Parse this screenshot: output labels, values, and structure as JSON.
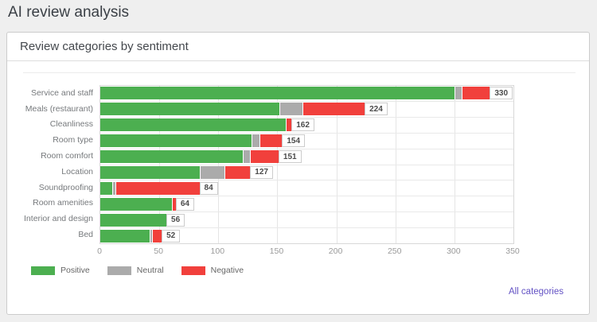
{
  "page": {
    "title": "AI review analysis"
  },
  "panel": {
    "title": "Review categories by sentiment",
    "link_label": "All categories"
  },
  "chart_data": {
    "type": "bar",
    "orientation": "horizontal",
    "stacked": true,
    "title": "Review categories by sentiment",
    "xlabel": "",
    "ylabel": "",
    "xlim": [
      0,
      350
    ],
    "x_ticks": [
      0,
      50,
      100,
      150,
      200,
      250,
      300,
      350
    ],
    "grid": true,
    "legend_position": "bottom-left",
    "categories": [
      "Service and staff",
      "Meals (restaurant)",
      "Cleanliness",
      "Room type",
      "Room comfort",
      "Location",
      "Soundproofing",
      "Room amenities",
      "Interior and design",
      "Bed"
    ],
    "series": [
      {
        "name": "Positive",
        "color": "#4CAF50",
        "values": [
          300,
          152,
          157,
          128,
          121,
          84,
          10,
          61,
          56,
          42
        ]
      },
      {
        "name": "Neutral",
        "color": "#ABABAB",
        "values": [
          6,
          19,
          0,
          7,
          6,
          21,
          3,
          0,
          0,
          2
        ]
      },
      {
        "name": "Negative",
        "color": "#F1403C",
        "values": [
          24,
          53,
          5,
          19,
          24,
          22,
          71,
          3,
          0,
          8
        ]
      }
    ],
    "totals": [
      330,
      224,
      162,
      154,
      151,
      127,
      84,
      64,
      56,
      52
    ]
  }
}
